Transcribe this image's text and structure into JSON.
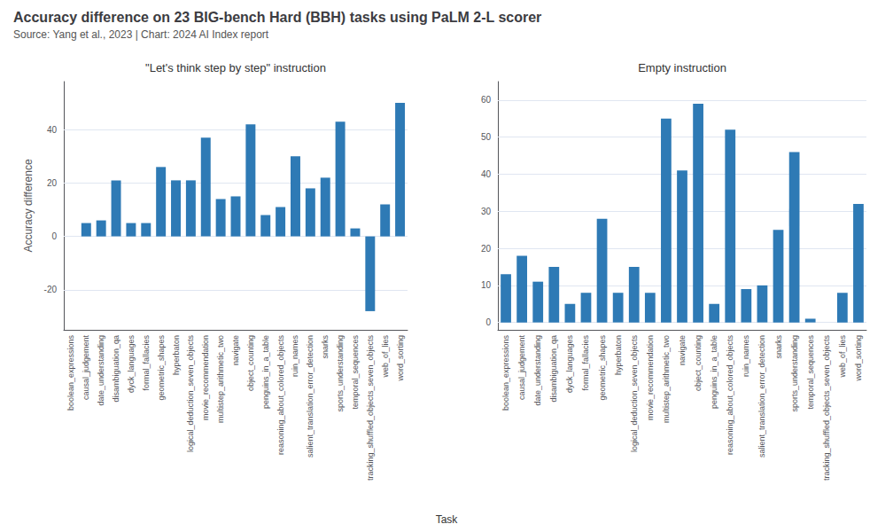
{
  "title": "Accuracy difference on 23 BIG-bench Hard (BBH) tasks using PaLM 2-L scorer",
  "subtitle": "Source: Yang et al., 2023 | Chart: 2024 AI Index report",
  "xlabel": "Task",
  "chart_data": [
    {
      "type": "bar",
      "title": "\"Let's think step by step\" instruction",
      "ylabel": "Accuracy difference",
      "categories": [
        "boolean_expressions",
        "causal_judgement",
        "date_understanding",
        "disambiguation_qa",
        "dyck_languages",
        "formal_fallacies",
        "geometric_shapes",
        "hyperbaton",
        "logical_deduction_seven_objects",
        "movie_recommendation",
        "multistep_arithmetic_two",
        "navigate",
        "object_counting",
        "penguins_in_a_table",
        "reasoning_about_colored_objects",
        "ruin_names",
        "salient_translation_error_detection",
        "snarks",
        "sports_understanding",
        "temporal_sequences",
        "tracking_shuffled_objects_seven_objects",
        "web_of_lies",
        "word_sorting"
      ],
      "values": [
        0,
        5,
        6,
        21,
        5,
        5,
        26,
        21,
        21,
        37,
        14,
        15,
        42,
        8,
        11,
        30,
        18,
        22,
        43,
        3,
        -28,
        12,
        50
      ],
      "color": "#2e7ab5",
      "ylim": [
        -35,
        58
      ],
      "yticks": [
        -20,
        0,
        20,
        40
      ],
      "grid": true
    },
    {
      "type": "bar",
      "title": "Empty instruction",
      "categories": [
        "boolean_expressions",
        "causal_judgement",
        "date_understanding",
        "disambiguation_qa",
        "dyck_languages",
        "formal_fallacies",
        "geometric_shapes",
        "hyperbaton",
        "logical_deduction_seven_objects",
        "movie_recommendation",
        "multistep_arithmetic_two",
        "navigate",
        "object_counting",
        "penguins_in_a_table",
        "reasoning_about_colored_objects",
        "ruin_names",
        "salient_translation_error_detection",
        "snarks",
        "sports_understanding",
        "temporal_sequences",
        "tracking_shuffled_objects_seven_objects",
        "web_of_lies",
        "word_sorting"
      ],
      "values": [
        13,
        18,
        11,
        15,
        5,
        8,
        28,
        8,
        15,
        8,
        55,
        41,
        59,
        5,
        52,
        9,
        10,
        25,
        46,
        1,
        0,
        8,
        32
      ],
      "color": "#2e7ab5",
      "ylim": [
        -2,
        65
      ],
      "yticks": [
        0,
        10,
        20,
        30,
        40,
        50,
        60
      ],
      "grid": true
    }
  ]
}
